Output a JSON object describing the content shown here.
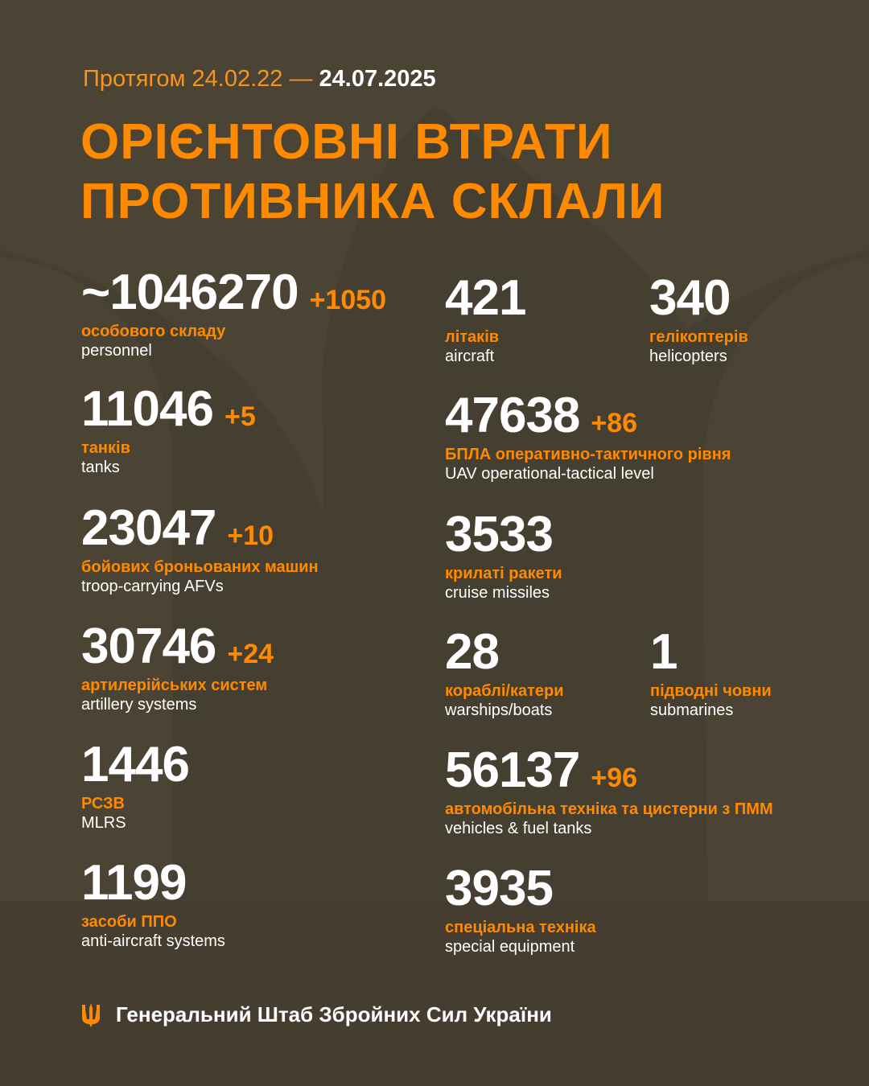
{
  "header": {
    "period_prefix": "Протягом 24.02.22 —",
    "period_date": "24.07.2025",
    "title_line1": "ОРІЄНТОВНІ ВТРАТИ",
    "title_line2": "ПРОТИВНИКА СКЛАЛИ"
  },
  "colors": {
    "background": "#4b4434",
    "accent": "#ff8a00",
    "text": "#ffffff"
  },
  "stats": {
    "personnel": {
      "value": "~1046270",
      "delta": "+1050",
      "ua": "особового складу",
      "en": "personnel"
    },
    "tanks": {
      "value": "11046",
      "delta": "+5",
      "ua": "танків",
      "en": "tanks"
    },
    "afv": {
      "value": "23047",
      "delta": "+10",
      "ua": "бойових броньованих машин",
      "en": "troop-carrying AFVs"
    },
    "artillery": {
      "value": "30746",
      "delta": "+24",
      "ua": "артилерійських систем",
      "en": "artillery systems"
    },
    "mlrs": {
      "value": "1446",
      "ua": "РСЗВ",
      "en": "MLRS"
    },
    "aa": {
      "value": "1199",
      "ua": "засоби ППО",
      "en": "anti-aircraft systems"
    },
    "aircraft": {
      "value": "421",
      "ua": "літаків",
      "en": "aircraft"
    },
    "helicopters": {
      "value": "340",
      "ua": "гелікоптерів",
      "en": "helicopters"
    },
    "uav": {
      "value": "47638",
      "delta": "+86",
      "ua": "БПЛА оперативно-тактичного рівня",
      "en": "UAV operational-tactical level"
    },
    "cruise": {
      "value": "3533",
      "ua": "крилаті ракети",
      "en": "cruise missiles"
    },
    "warships": {
      "value": "28",
      "ua": "кораблі/катери",
      "en": "warships/boats"
    },
    "submarines": {
      "value": "1",
      "ua": "підводні човни",
      "en": "submarines"
    },
    "vehicles": {
      "value": "56137",
      "delta": "+96",
      "ua": "автомобільна техніка та цистерни з ПММ",
      "en": "vehicles & fuel tanks"
    },
    "special": {
      "value": "3935",
      "ua": "спеціальна техніка",
      "en": "special equipment"
    }
  },
  "footer": {
    "icon": "trident-icon",
    "text": "Генеральний Штаб Збройних Сил України"
  }
}
